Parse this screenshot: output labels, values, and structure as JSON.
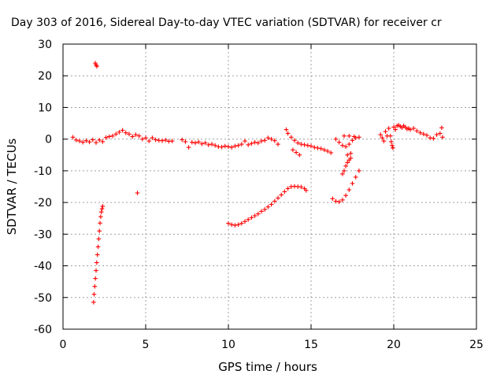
{
  "chart_data": {
    "type": "scatter",
    "title": "Day 303 of 2016, Sidereal Day-to-day VTEC variation (SDTVAR) for receiver cr",
    "xlabel": "GPS time / hours",
    "ylabel": "SDTVAR / TECUs",
    "xlim": [
      0,
      25
    ],
    "ylim": [
      -60,
      30
    ],
    "xticks": [
      "0",
      "5",
      "10",
      "15",
      "20",
      "25"
    ],
    "yticks": [
      "30",
      "20",
      "10",
      "0",
      "-10",
      "-20",
      "-30",
      "-40",
      "-50",
      "-60"
    ],
    "grid": true,
    "marker": "+",
    "color": "#ff0000",
    "series": [
      {
        "values": [
          [
            1.95,
            24.0
          ],
          [
            2.0,
            23.4
          ],
          [
            2.05,
            23.0
          ],
          [
            0.6,
            0.6
          ],
          [
            0.8,
            -0.3
          ],
          [
            1.0,
            -0.6
          ],
          [
            1.2,
            -1.0
          ],
          [
            1.4,
            -0.5
          ],
          [
            1.6,
            -0.9
          ],
          [
            1.8,
            -0.2
          ],
          [
            2.0,
            -1.1
          ],
          [
            2.2,
            -0.3
          ],
          [
            2.4,
            -0.8
          ],
          [
            2.6,
            0.5
          ],
          [
            2.8,
            0.8
          ],
          [
            3.0,
            1.0
          ],
          [
            3.2,
            1.6
          ],
          [
            3.4,
            2.2
          ],
          [
            3.6,
            2.8
          ],
          [
            3.8,
            2.0
          ],
          [
            4.0,
            1.6
          ],
          [
            4.2,
            0.8
          ],
          [
            4.4,
            1.4
          ],
          [
            4.6,
            1.0
          ],
          [
            4.8,
            0.0
          ],
          [
            5.0,
            0.4
          ],
          [
            5.2,
            -0.6
          ],
          [
            5.4,
            0.4
          ],
          [
            5.6,
            -0.2
          ],
          [
            5.8,
            -0.4
          ],
          [
            6.0,
            -0.5
          ],
          [
            6.2,
            -0.3
          ],
          [
            6.4,
            -0.7
          ],
          [
            6.6,
            -0.6
          ],
          [
            4.5,
            -17.0
          ],
          [
            7.2,
            -0.2
          ],
          [
            7.4,
            -0.8
          ],
          [
            7.6,
            -2.6
          ],
          [
            7.8,
            -1.0
          ],
          [
            8.0,
            -1.2
          ],
          [
            8.2,
            -0.9
          ],
          [
            8.4,
            -1.5
          ],
          [
            8.6,
            -1.2
          ],
          [
            8.8,
            -1.8
          ],
          [
            9.0,
            -1.6
          ],
          [
            9.2,
            -2.0
          ],
          [
            9.4,
            -2.4
          ],
          [
            9.6,
            -2.5
          ],
          [
            9.8,
            -2.2
          ],
          [
            10.0,
            -2.4
          ],
          [
            10.2,
            -2.6
          ],
          [
            10.4,
            -2.2
          ],
          [
            10.6,
            -2.0
          ],
          [
            10.8,
            -1.6
          ],
          [
            11.0,
            -0.6
          ],
          [
            11.2,
            -1.8
          ],
          [
            11.4,
            -1.4
          ],
          [
            11.6,
            -1.0
          ],
          [
            11.8,
            -1.2
          ],
          [
            12.0,
            -0.6
          ],
          [
            12.2,
            -0.4
          ],
          [
            12.4,
            0.4
          ],
          [
            12.6,
            0.0
          ],
          [
            12.8,
            -0.5
          ],
          [
            13.0,
            -1.6
          ],
          [
            13.5,
            3.0
          ],
          [
            13.6,
            1.8
          ],
          [
            13.8,
            0.6
          ],
          [
            14.0,
            -0.4
          ],
          [
            14.2,
            -1.2
          ],
          [
            14.4,
            -1.6
          ],
          [
            14.6,
            -1.8
          ],
          [
            14.8,
            -2.0
          ],
          [
            15.0,
            -2.2
          ],
          [
            15.2,
            -2.6
          ],
          [
            15.4,
            -2.8
          ],
          [
            15.6,
            -3.0
          ],
          [
            15.8,
            -3.4
          ],
          [
            16.0,
            -3.8
          ],
          [
            16.2,
            -4.3
          ],
          [
            13.9,
            -3.4
          ],
          [
            14.1,
            -4.2
          ],
          [
            14.3,
            -5.0
          ],
          [
            16.5,
            0.0
          ],
          [
            16.7,
            -1.0
          ],
          [
            16.9,
            -2.0
          ],
          [
            17.1,
            -2.4
          ],
          [
            17.3,
            -1.6
          ],
          [
            17.5,
            -0.4
          ],
          [
            17.7,
            0.4
          ],
          [
            17.9,
            0.6
          ],
          [
            17.0,
            1.0
          ],
          [
            17.3,
            1.0
          ],
          [
            17.6,
            0.8
          ],
          [
            17.2,
            -5.0
          ],
          [
            17.4,
            -4.5
          ],
          [
            16.9,
            -11.0
          ],
          [
            17.0,
            -10.0
          ],
          [
            17.1,
            -8.5
          ],
          [
            17.2,
            -7.4
          ],
          [
            17.3,
            -6.6
          ],
          [
            17.4,
            -6.0
          ],
          [
            16.3,
            -18.8
          ],
          [
            16.5,
            -19.6
          ],
          [
            16.7,
            -19.8
          ],
          [
            16.9,
            -19.2
          ],
          [
            17.1,
            -17.8
          ],
          [
            17.3,
            -16.0
          ],
          [
            17.5,
            -14.0
          ],
          [
            17.7,
            -12.0
          ],
          [
            17.9,
            -10.0
          ],
          [
            19.2,
            1.4
          ],
          [
            19.3,
            0.4
          ],
          [
            19.4,
            -0.6
          ],
          [
            19.5,
            2.4
          ],
          [
            19.6,
            1.0
          ],
          [
            19.7,
            3.4
          ],
          [
            19.8,
            1.0
          ],
          [
            19.85,
            -0.8
          ],
          [
            19.9,
            -2.0
          ],
          [
            19.95,
            -2.8
          ],
          [
            20.0,
            3.8
          ],
          [
            20.1,
            3.0
          ],
          [
            20.2,
            4.2
          ],
          [
            20.3,
            4.4
          ],
          [
            20.4,
            4.0
          ],
          [
            20.5,
            3.6
          ],
          [
            20.6,
            4.2
          ],
          [
            20.7,
            3.8
          ],
          [
            20.8,
            3.2
          ],
          [
            20.9,
            3.4
          ],
          [
            21.0,
            3.0
          ],
          [
            21.2,
            3.4
          ],
          [
            21.4,
            2.6
          ],
          [
            21.6,
            2.0
          ],
          [
            21.8,
            1.6
          ],
          [
            22.0,
            1.2
          ],
          [
            22.2,
            0.4
          ],
          [
            22.4,
            0.2
          ],
          [
            22.6,
            1.4
          ],
          [
            22.8,
            1.8
          ],
          [
            22.9,
            3.6
          ],
          [
            22.95,
            0.6
          ]
        ]
      },
      {
        "values": [
          [
            1.85,
            -51.5
          ],
          [
            1.88,
            -49.0
          ],
          [
            1.92,
            -46.5
          ],
          [
            1.96,
            -44.0
          ],
          [
            2.0,
            -41.5
          ],
          [
            2.04,
            -39.0
          ],
          [
            2.08,
            -36.5
          ],
          [
            2.12,
            -34.0
          ],
          [
            2.16,
            -31.5
          ],
          [
            2.2,
            -29.0
          ],
          [
            2.24,
            -26.5
          ],
          [
            2.28,
            -24.5
          ],
          [
            2.32,
            -23.0
          ],
          [
            2.36,
            -22.0
          ],
          [
            2.4,
            -21.2
          ]
        ]
      },
      {
        "values": [
          [
            10.0,
            -26.6
          ],
          [
            10.2,
            -27.0
          ],
          [
            10.4,
            -27.2
          ],
          [
            10.6,
            -27.0
          ],
          [
            10.8,
            -26.6
          ],
          [
            11.0,
            -26.0
          ],
          [
            11.2,
            -25.4
          ],
          [
            11.4,
            -24.8
          ],
          [
            11.6,
            -24.2
          ],
          [
            11.8,
            -23.6
          ],
          [
            12.0,
            -22.8
          ],
          [
            12.2,
            -22.2
          ],
          [
            12.4,
            -21.4
          ],
          [
            12.6,
            -20.6
          ],
          [
            12.8,
            -19.6
          ],
          [
            13.0,
            -18.6
          ],
          [
            13.2,
            -17.6
          ],
          [
            13.4,
            -16.6
          ],
          [
            13.6,
            -15.6
          ],
          [
            13.8,
            -15.0
          ],
          [
            14.0,
            -14.9
          ],
          [
            14.2,
            -15.0
          ],
          [
            14.4,
            -15.1
          ],
          [
            14.6,
            -15.6
          ],
          [
            14.7,
            -16.2
          ]
        ]
      }
    ]
  }
}
